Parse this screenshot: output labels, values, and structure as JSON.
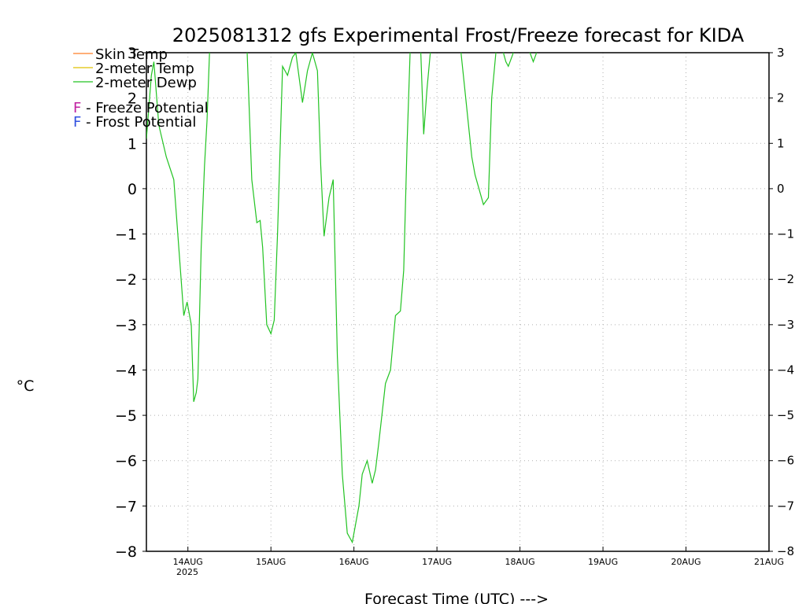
{
  "chart_data": {
    "type": "line",
    "title": "2025081312 gfs Experimental Frost/Freeze forecast for KIDA",
    "xlabel": "Forecast Time (UTC) --->",
    "ylabel": "°C",
    "ylim": [
      -8,
      3
    ],
    "yticks": [
      -8,
      -7,
      -6,
      -5,
      -4,
      -3,
      -2,
      -1,
      0,
      1,
      2,
      3
    ],
    "xlim": [
      "2025-08-13 12Z",
      "2025-08-21 00Z"
    ],
    "x_tick_labels": [
      "14AUG",
      "15AUG",
      "16AUG",
      "17AUG",
      "18AUG",
      "19AUG",
      "20AUG",
      "21AUG"
    ],
    "x_tick_sublabel": "2025",
    "grid": true,
    "legend_position": "top-left",
    "legend": [
      {
        "label": "Skin Temp",
        "color": "#ff7f27"
      },
      {
        "label": "2-meter Temp",
        "color": "#e0c000"
      },
      {
        "label": "2-meter Dewp",
        "color": "#22c322"
      }
    ],
    "potential_legend": [
      {
        "letter": "F",
        "label": " - Freeze Potential",
        "color": "#c020a0"
      },
      {
        "letter": "F",
        "label": " - Frost Potential",
        "color": "#3050e0"
      }
    ],
    "series": [
      {
        "name": "2-meter Dewp",
        "color": "#22c322",
        "x_day_offset": [
          0.0,
          0.06,
          0.09,
          0.15,
          0.24,
          0.33,
          0.45,
          0.49,
          0.54,
          0.57,
          0.6,
          0.62,
          0.64,
          0.66,
          0.7,
          0.73,
          0.76,
          0.79,
          0.84,
          0.89,
          1.21,
          1.27,
          1.33,
          1.37,
          1.4,
          1.45,
          1.5,
          1.54,
          1.58,
          1.64,
          1.7,
          1.76,
          1.8,
          1.88,
          1.94,
          2.0,
          2.06,
          2.1,
          2.14,
          2.2,
          2.25,
          2.3,
          2.36,
          2.42,
          2.48,
          2.52,
          2.56,
          2.6,
          2.66,
          2.72,
          2.76,
          2.8,
          2.88,
          2.94,
          3.0,
          3.06,
          3.1,
          3.14,
          3.18,
          3.24,
          3.3,
          3.34,
          3.38,
          3.42,
          3.46,
          3.5,
          3.6,
          3.66,
          3.7,
          3.74,
          3.79,
          3.83,
          3.92,
          3.96,
          4.06,
          4.12,
          4.16,
          4.21,
          4.24,
          4.26,
          4.28,
          4.3,
          4.33,
          4.36,
          4.4,
          4.44,
          4.48,
          4.52,
          4.56,
          4.58,
          4.62,
          4.66,
          4.68,
          4.7
        ],
        "values": [
          1.1,
          2.5,
          2.8,
          1.4,
          0.7,
          0.2,
          -2.8,
          -2.5,
          -3.0,
          -4.7,
          -4.5,
          -4.2,
          -2.8,
          -1.3,
          0.5,
          1.5,
          3.0,
          3.2,
          3.5,
          3.3,
          3.2,
          0.2,
          -0.75,
          -0.7,
          -1.3,
          -3.0,
          -3.2,
          -2.9,
          -1.0,
          2.7,
          2.5,
          2.9,
          3.0,
          1.9,
          2.6,
          3.0,
          2.6,
          0.5,
          -1.05,
          -0.2,
          0.2,
          -3.7,
          -6.3,
          -7.6,
          -7.8,
          -7.4,
          -7.0,
          -6.3,
          -6.0,
          -6.5,
          -6.2,
          -5.6,
          -4.3,
          -4.0,
          -2.8,
          -2.7,
          -1.8,
          1.0,
          3.2,
          3.4,
          3.3,
          1.2,
          2.2,
          3.0,
          3.3,
          3.5,
          3.6,
          3.5,
          3.3,
          3.2,
          3.0,
          2.3,
          0.7,
          0.3,
          -0.35,
          -0.2,
          2.0,
          3.0,
          3.3,
          3.4,
          3.2,
          3.0,
          2.8,
          2.7,
          2.9,
          3.1,
          3.2,
          3.3,
          3.2,
          3.1,
          3.0,
          2.8,
          2.9,
          3.0
        ]
      }
    ]
  }
}
